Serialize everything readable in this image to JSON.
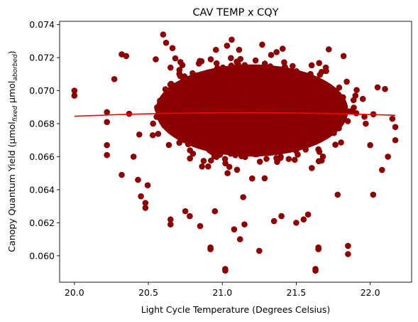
{
  "chart_data": {
    "type": "scatter",
    "title": "CAV TEMP x CQY",
    "xlabel": "Light Cycle Temperature (Degrees Celsius)",
    "ylabel_main": "Canopy Quantum Yield (μmol",
    "ylabel_sub1": "fixed",
    "ylabel_mid": " μmol",
    "ylabel_sub2": "aborbed",
    "ylabel_end": ")",
    "xlim": [
      19.9,
      22.28
    ],
    "ylim": [
      0.0584,
      0.0742
    ],
    "x_ticks": [
      20.0,
      20.5,
      21.0,
      21.5,
      22.0
    ],
    "x_tick_labels": [
      "20.0",
      "20.5",
      "21.0",
      "21.5",
      "22.0"
    ],
    "y_ticks": [
      0.06,
      0.062,
      0.064,
      0.066,
      0.068,
      0.07,
      0.072,
      0.074
    ],
    "y_tick_labels": [
      "0.060",
      "0.062",
      "0.064",
      "0.066",
      "0.068",
      "0.070",
      "0.072",
      "0.074"
    ],
    "scatter_color": "#8b0000",
    "fit_color": "#ff0000",
    "scatter_cluster": {
      "center": [
        21.2,
        0.0688
      ],
      "x_spread": 0.42,
      "y_spread": 0.0018
    },
    "points": [
      [
        20.0,
        0.07
      ],
      [
        20.0,
        0.0697
      ],
      [
        20.22,
        0.0687
      ],
      [
        20.22,
        0.0681
      ],
      [
        20.22,
        0.0667
      ],
      [
        20.22,
        0.0661
      ],
      [
        20.27,
        0.0707
      ],
      [
        20.32,
        0.0722
      ],
      [
        20.35,
        0.0721
      ],
      [
        20.32,
        0.0649
      ],
      [
        20.37,
        0.0686
      ],
      [
        20.4,
        0.066
      ],
      [
        20.43,
        0.0646
      ],
      [
        20.45,
        0.0636
      ],
      [
        20.48,
        0.0632
      ],
      [
        20.48,
        0.0629
      ],
      [
        20.55,
        0.0719
      ],
      [
        20.6,
        0.0734
      ],
      [
        20.62,
        0.0729
      ],
      [
        20.65,
        0.0714
      ],
      [
        20.65,
        0.0622
      ],
      [
        20.65,
        0.0619
      ],
      [
        20.75,
        0.0627
      ],
      [
        20.78,
        0.0624
      ],
      [
        20.85,
        0.0618
      ],
      [
        20.92,
        0.0605
      ],
      [
        20.92,
        0.0604
      ],
      [
        20.95,
        0.0627
      ],
      [
        21.02,
        0.0592
      ],
      [
        21.02,
        0.0591
      ],
      [
        21.08,
        0.0616
      ],
      [
        21.12,
        0.061
      ],
      [
        21.15,
        0.0619
      ],
      [
        21.25,
        0.0603
      ],
      [
        21.35,
        0.0621
      ],
      [
        21.4,
        0.0624
      ],
      [
        21.5,
        0.062
      ],
      [
        21.55,
        0.0622
      ],
      [
        21.58,
        0.0625
      ],
      [
        21.63,
        0.0592
      ],
      [
        21.63,
        0.0591
      ],
      [
        21.65,
        0.0605
      ],
      [
        21.65,
        0.0604
      ],
      [
        21.72,
        0.0725
      ],
      [
        21.7,
        0.0714
      ],
      [
        21.78,
        0.0637
      ],
      [
        21.82,
        0.0721
      ],
      [
        21.85,
        0.0606
      ],
      [
        21.85,
        0.0601
      ],
      [
        21.9,
        0.0697
      ],
      [
        21.97,
        0.068
      ],
      [
        22.0,
        0.0667
      ],
      [
        22.02,
        0.0637
      ],
      [
        22.05,
        0.0702
      ],
      [
        22.1,
        0.0701
      ],
      [
        22.12,
        0.066
      ],
      [
        22.15,
        0.0683
      ],
      [
        22.17,
        0.0678
      ],
      [
        22.17,
        0.067
      ],
      [
        22.08,
        0.0652
      ],
      [
        21.95,
        0.0695
      ]
    ],
    "fit_line": {
      "x": [
        20.0,
        20.3,
        20.6,
        20.9,
        21.2,
        21.5,
        21.8,
        22.1,
        22.17
      ],
      "y": [
        0.06845,
        0.06855,
        0.06862,
        0.06866,
        0.06867,
        0.06865,
        0.0686,
        0.06853,
        0.06851
      ]
    }
  }
}
